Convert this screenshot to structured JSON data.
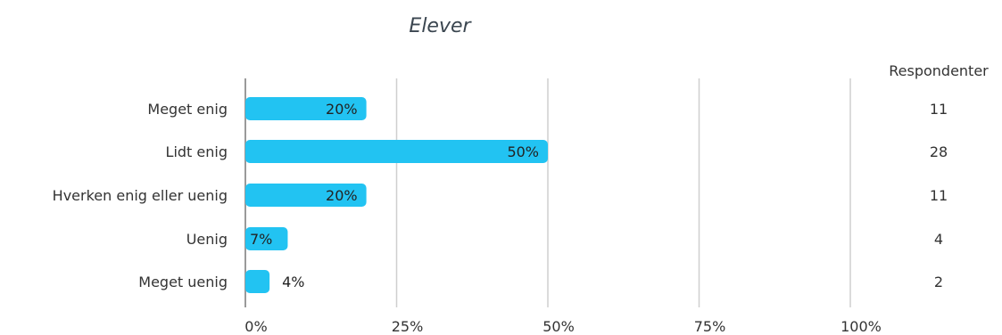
{
  "chart_data": {
    "type": "bar",
    "orientation": "horizontal",
    "title": "Elever",
    "categories": [
      "Meget enig",
      "Lidt enig",
      "Hverken enig eller uenig",
      "Uenig",
      "Meget uenig"
    ],
    "values": [
      20,
      50,
      20,
      7,
      4
    ],
    "value_labels": [
      "20%",
      "50%",
      "20%",
      "7%",
      "4%"
    ],
    "respondents_header": "Respondenter",
    "respondents": [
      "11",
      "28",
      "11",
      "4",
      "2"
    ],
    "xticks": [
      "0%",
      "25%",
      "50%",
      "75%",
      "100%"
    ],
    "xlim": [
      0,
      100
    ],
    "grid": true,
    "bar_color": "#22c3f2"
  }
}
